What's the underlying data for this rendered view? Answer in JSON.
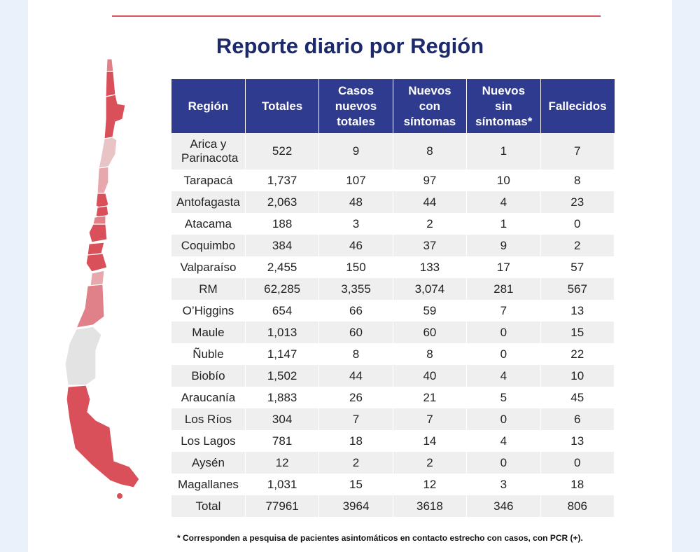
{
  "title": "Reporte diario por Región",
  "table": {
    "headers": [
      "Región",
      "Totales",
      "Casos nuevos totales",
      "Nuevos con síntomas",
      "Nuevos sin síntomas*",
      "Fallecidos"
    ],
    "rows": [
      [
        "Arica y Parinacota",
        "522",
        "9",
        "8",
        "1",
        "7"
      ],
      [
        "Tarapacá",
        "1,737",
        "107",
        "97",
        "10",
        "8"
      ],
      [
        "Antofagasta",
        "2,063",
        "48",
        "44",
        "4",
        "23"
      ],
      [
        "Atacama",
        "188",
        "3",
        "2",
        "1",
        "0"
      ],
      [
        "Coquimbo",
        "384",
        "46",
        "37",
        "9",
        "2"
      ],
      [
        "Valparaíso",
        "2,455",
        "150",
        "133",
        "17",
        "57"
      ],
      [
        "RM",
        "62,285",
        "3,355",
        "3,074",
        "281",
        "567"
      ],
      [
        "O’Higgins",
        "654",
        "66",
        "59",
        "7",
        "13"
      ],
      [
        "Maule",
        "1,013",
        "60",
        "60",
        "0",
        "15"
      ],
      [
        "Ñuble",
        "1,147",
        "8",
        "8",
        "0",
        "22"
      ],
      [
        "Biobío",
        "1,502",
        "44",
        "40",
        "4",
        "10"
      ],
      [
        "Araucanía",
        "1,883",
        "26",
        "21",
        "5",
        "45"
      ],
      [
        "Los Ríos",
        "304",
        "7",
        "7",
        "0",
        "6"
      ],
      [
        "Los Lagos",
        "781",
        "18",
        "14",
        "4",
        "13"
      ],
      [
        "Aysén",
        "12",
        "2",
        "2",
        "0",
        "0"
      ],
      [
        "Magallanes",
        "1,031",
        "15",
        "12",
        "3",
        "18"
      ],
      [
        "Total",
        "77961",
        "3964",
        "3618",
        "346",
        "806"
      ]
    ]
  },
  "footnote": "* Corresponden a pesquisa de pacientes asintomáticos en contacto estrecho con casos, con PCR (+).",
  "colors": {
    "header": "#2e3b8e",
    "title": "#1c2a6b",
    "map_high": "#d9505a",
    "map_mid": "#e08088",
    "map_low": "#e8c4c7",
    "map_none": "#e3e3e3"
  }
}
